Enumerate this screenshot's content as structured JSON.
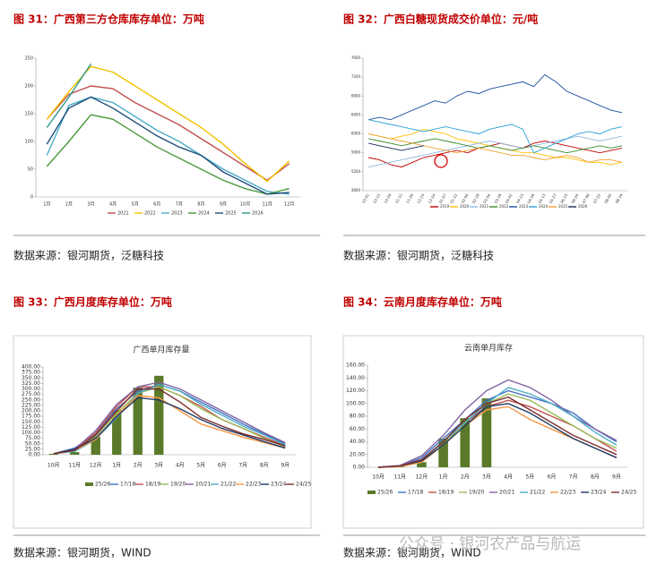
{
  "figures": [
    {
      "caption": "图 31：广西第三方仓库库存单位：万吨",
      "source": "数据来源：银河期货，泛糖科技"
    },
    {
      "caption": "图 32：广西白糖现货成交价单位：元/吨",
      "source": "数据来源：银河期货，泛糖科技"
    },
    {
      "caption": "图 33：广西月度库存单位：万吨",
      "source": "数据来源：银河期货，WIND"
    },
    {
      "caption": "图 34：云南月度库存单位：万吨",
      "source": "数据来源：银河期货，WIND"
    }
  ],
  "watermark": "公众号 · 银河农产品与航运",
  "chart_data": [
    {
      "type": "line",
      "categories": [
        "1月",
        "2月",
        "3月",
        "4月",
        "5月",
        "6月",
        "7月",
        "8月",
        "9月",
        "10月",
        "11月",
        "12月"
      ],
      "ylim": [
        0,
        250
      ],
      "yticks": [
        0,
        50,
        100,
        150,
        200,
        250
      ],
      "series": [
        {
          "name": "2021",
          "color": "#c0504d",
          "values": [
            140,
            185,
            200,
            195,
            170,
            150,
            130,
            105,
            80,
            55,
            30,
            60
          ]
        },
        {
          "name": "2022",
          "color": "#f2c200",
          "values": [
            140,
            190,
            235,
            225,
            200,
            175,
            150,
            125,
            95,
            60,
            28,
            65
          ]
        },
        {
          "name": "2023",
          "color": "#4bacc6",
          "values": [
            75,
            165,
            180,
            170,
            145,
            120,
            100,
            75,
            50,
            30,
            10,
            5
          ]
        },
        {
          "name": "2024",
          "color": "#4a9a3a",
          "values": [
            55,
            100,
            148,
            140,
            115,
            90,
            70,
            50,
            30,
            15,
            5,
            15
          ]
        },
        {
          "name": "2025",
          "color": "#1f4e79",
          "values": [
            95,
            160,
            180,
            160,
            135,
            110,
            90,
            75,
            45,
            25,
            5,
            8
          ]
        },
        {
          "name": "2026",
          "color": "#2e9a8a",
          "values": [
            125,
            180,
            240,
            null,
            null,
            null,
            null,
            null,
            null,
            null,
            null,
            null
          ]
        }
      ]
    },
    {
      "type": "line",
      "categories": [
        "10-01",
        "10-15",
        "10-29",
        "11-12",
        "11-26",
        "12-10",
        "12-24",
        "01-07",
        "01-21",
        "02-04",
        "02-18",
        "03-04",
        "03-18",
        "04-01",
        "04-15",
        "04-29",
        "05-13",
        "05-27",
        "06-10",
        "06-24",
        "07-08",
        "07-22",
        "08-05",
        "08-19"
      ],
      "ylim": [
        4800,
        7600
      ],
      "yticks": [
        4800,
        5200,
        5600,
        6000,
        6400,
        6800,
        7200,
        7600
      ],
      "series": [
        {
          "name": "2019",
          "color": "#c00000",
          "values": [
            5500,
            5450,
            5350,
            5300,
            5400,
            5500,
            5550,
            5600,
            5650,
            5600,
            5700,
            5750,
            5800,
            5750,
            5700,
            5800,
            5850,
            5800,
            5750,
            5700,
            5650,
            5600,
            5650,
            5700
          ]
        },
        {
          "name": "2020",
          "color": "#ffc000",
          "values": [
            6000,
            5950,
            5900,
            5950,
            6000,
            6100,
            6050,
            6000,
            5900,
            5850,
            5800,
            5750,
            5700,
            5650,
            5600,
            5600,
            5550,
            5500,
            5500,
            5450,
            5400,
            5400,
            5350,
            5400
          ]
        },
        {
          "name": "2021",
          "color": "#8fb8e0",
          "values": [
            5300,
            5350,
            5400,
            5450,
            5500,
            5550,
            5600,
            5650,
            5700,
            5750,
            5800,
            5850,
            5800,
            5750,
            5700,
            5750,
            5800,
            5850,
            5900,
            5950,
            5900,
            5850,
            5900,
            5950
          ]
        },
        {
          "name": "2022",
          "color": "#3a8a2a",
          "values": [
            5900,
            5850,
            5800,
            5750,
            5800,
            5850,
            5900,
            5850,
            5800,
            5750,
            5700,
            5750,
            5700,
            5650,
            5700,
            5750,
            5700,
            5650,
            5600,
            5650,
            5700,
            5750,
            5700,
            5750
          ]
        },
        {
          "name": "2023",
          "color": "#1f4ea0",
          "values": [
            6300,
            6350,
            6300,
            6400,
            6500,
            6600,
            6700,
            6650,
            6800,
            6900,
            6850,
            6950,
            7000,
            7050,
            7100,
            7000,
            7250,
            7100,
            6900,
            6800,
            6700,
            6600,
            6500,
            6450
          ]
        },
        {
          "name": "2024",
          "color": "#2aa0d8",
          "values": [
            6300,
            6250,
            6200,
            6150,
            6100,
            6050,
            6100,
            6150,
            6100,
            6050,
            6000,
            6100,
            6150,
            6200,
            6100,
            5600,
            5700,
            5800,
            5900,
            6000,
            6050,
            6000,
            6100,
            6150
          ]
        },
        {
          "name": "2025",
          "color": "#f0a030",
          "values": [
            6000,
            5950,
            5900,
            5850,
            5800,
            5750,
            5700,
            5650,
            5600,
            5650,
            5700,
            5650,
            5600,
            5550,
            5550,
            5500,
            5450,
            5500,
            5550,
            5500,
            5400,
            5450,
            5450,
            5400
          ]
        },
        {
          "name": "2026",
          "color": "#1a2a5a",
          "values": [
            5800,
            5750,
            5700,
            5650,
            5700,
            5750,
            null,
            null,
            null,
            null,
            null,
            null,
            null,
            null,
            null,
            null,
            null,
            null,
            null,
            null,
            null,
            null,
            null,
            null
          ]
        }
      ]
    },
    {
      "type": "combo",
      "title": "广西单月库存量",
      "categories": [
        "10月",
        "11月",
        "12月",
        "1月",
        "2月",
        "3月",
        "4月",
        "5月",
        "6月",
        "7月",
        "8月",
        "9月"
      ],
      "ylim": [
        0,
        400
      ],
      "yticks": [
        {
          "value": 0,
          "label": "0.00"
        },
        {
          "value": 25,
          "label": "25.00"
        },
        {
          "value": 50,
          "label": "50.00"
        },
        {
          "value": 75,
          "label": "75.00"
        },
        {
          "value": 100,
          "label": "100.00"
        },
        {
          "value": 125,
          "label": "125.00"
        },
        {
          "value": 150,
          "label": "150.00"
        },
        {
          "value": 175,
          "label": "175.00"
        },
        {
          "value": 200,
          "label": "200.00"
        },
        {
          "value": 225,
          "label": "225.00"
        },
        {
          "value": 250,
          "label": "250.00"
        },
        {
          "value": 275,
          "label": "275.00"
        },
        {
          "value": 300,
          "label": "300.00"
        },
        {
          "value": 325,
          "label": "325.00"
        },
        {
          "value": 350,
          "label": "350.00"
        },
        {
          "value": 375,
          "label": "375.00"
        },
        {
          "value": 400,
          "label": "400.00"
        }
      ],
      "series": [
        {
          "name": "25/26",
          "type": "bar",
          "color": "#5a7a2a",
          "values": [
            4,
            12,
            82,
            204,
            306,
            360,
            null,
            null,
            null,
            null,
            null,
            null
          ]
        },
        {
          "name": "17/18",
          "type": "line",
          "color": "#4472c4",
          "values": [
            5,
            30,
            95,
            210,
            290,
            320,
            290,
            240,
            190,
            140,
            95,
            50
          ]
        },
        {
          "name": "18/19",
          "type": "line",
          "color": "#c0504d",
          "values": [
            5,
            25,
            100,
            220,
            310,
            310,
            270,
            220,
            160,
            120,
            80,
            40
          ]
        },
        {
          "name": "19/20",
          "type": "line",
          "color": "#9bbb59",
          "values": [
            5,
            20,
            85,
            190,
            280,
            310,
            270,
            210,
            160,
            120,
            75,
            35
          ]
        },
        {
          "name": "20/21",
          "type": "line",
          "color": "#8064a2",
          "values": [
            5,
            25,
            110,
            230,
            310,
            330,
            300,
            250,
            200,
            150,
            100,
            55
          ]
        },
        {
          "name": "21/22",
          "type": "line",
          "color": "#4bacc6",
          "values": [
            5,
            15,
            70,
            170,
            280,
            320,
            290,
            230,
            180,
            130,
            90,
            45
          ]
        },
        {
          "name": "22/23",
          "type": "line",
          "color": "#f79646",
          "values": [
            5,
            20,
            70,
            180,
            270,
            260,
            200,
            140,
            110,
            80,
            55,
            30
          ]
        },
        {
          "name": "23/24",
          "type": "line",
          "color": "#1f3864",
          "values": [
            5,
            25,
            75,
            175,
            260,
            250,
            210,
            160,
            120,
            90,
            60,
            30
          ]
        },
        {
          "name": "24/25",
          "type": "line",
          "color": "#7b2c2c",
          "values": [
            5,
            20,
            90,
            200,
            300,
            300,
            240,
            170,
            130,
            95,
            70,
            40
          ]
        }
      ]
    },
    {
      "type": "combo",
      "title": "云南单月库存",
      "categories": [
        "10月",
        "11月",
        "12月",
        "1月",
        "2月",
        "3月",
        "4月",
        "5月",
        "6月",
        "7月",
        "8月",
        "9月"
      ],
      "ylim": [
        0,
        160
      ],
      "yticks": [
        {
          "value": 0,
          "label": "0.00"
        },
        {
          "value": 20,
          "label": "20.00"
        },
        {
          "value": 40,
          "label": "40.00"
        },
        {
          "value": 60,
          "label": "60.00"
        },
        {
          "value": 80,
          "label": "80.00"
        },
        {
          "value": 100,
          "label": "100.00"
        },
        {
          "value": 120,
          "label": "120.00"
        },
        {
          "value": 140,
          "label": "140.00"
        },
        {
          "value": 160,
          "label": "160.00"
        }
      ],
      "series": [
        {
          "name": "25/26",
          "type": "bar",
          "color": "#5a7a2a",
          "values": [
            0,
            1,
            8,
            45,
            77,
            108,
            null,
            null,
            null,
            null,
            null,
            null
          ]
        },
        {
          "name": "17/18",
          "type": "line",
          "color": "#4472c4",
          "values": [
            0,
            2,
            15,
            45,
            75,
            105,
            120,
            110,
            100,
            85,
            60,
            40
          ]
        },
        {
          "name": "18/19",
          "type": "line",
          "color": "#c0504d",
          "values": [
            0,
            2,
            12,
            40,
            70,
            95,
            105,
            95,
            80,
            65,
            45,
            25
          ]
        },
        {
          "name": "19/20",
          "type": "line",
          "color": "#9bbb59",
          "values": [
            0,
            1,
            8,
            35,
            70,
            100,
            115,
            105,
            85,
            65,
            45,
            30
          ]
        },
        {
          "name": "20/21",
          "type": "line",
          "color": "#8064a2",
          "values": [
            0,
            3,
            18,
            50,
            90,
            120,
            137,
            125,
            105,
            80,
            60,
            42
          ]
        },
        {
          "name": "21/22",
          "type": "line",
          "color": "#4bacc6",
          "values": [
            0,
            2,
            10,
            40,
            70,
            100,
            125,
            115,
            100,
            80,
            55,
            35
          ]
        },
        {
          "name": "22/23",
          "type": "line",
          "color": "#f79646",
          "values": [
            0,
            1,
            8,
            35,
            65,
            90,
            95,
            75,
            60,
            45,
            30,
            15
          ]
        },
        {
          "name": "23/24",
          "type": "line",
          "color": "#1f3864",
          "values": [
            0,
            2,
            10,
            35,
            65,
            95,
            100,
            85,
            65,
            45,
            30,
            15
          ]
        },
        {
          "name": "24/25",
          "type": "line",
          "color": "#7b2c2c",
          "values": [
            0,
            2,
            12,
            40,
            75,
            100,
            110,
            90,
            70,
            50,
            35,
            20
          ]
        }
      ]
    }
  ]
}
